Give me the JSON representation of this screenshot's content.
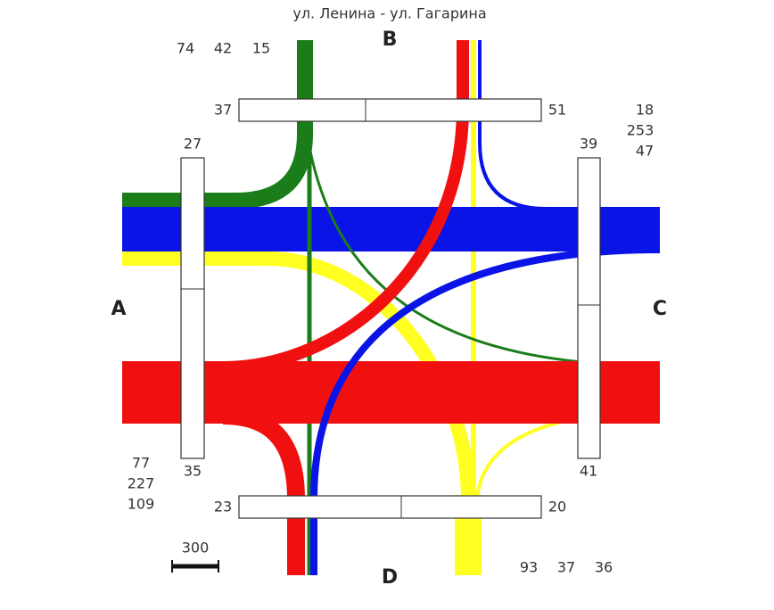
{
  "title": "ул. Ленина - ул. Гагарина",
  "approaches": [
    {
      "label": "A",
      "counts": [
        77,
        227,
        109
      ]
    },
    {
      "label": "B",
      "counts": [
        74,
        42,
        15
      ]
    },
    {
      "label": "C",
      "counts": [
        18,
        253,
        47
      ]
    },
    {
      "label": "D",
      "counts": [
        93,
        37,
        36
      ]
    }
  ],
  "crossings": [
    {
      "ends": [
        37,
        51
      ]
    },
    {
      "ends": [
        27,
        35
      ]
    },
    {
      "ends": [
        39,
        41
      ]
    },
    {
      "ends": [
        23,
        20
      ]
    }
  ],
  "scale": 300
}
